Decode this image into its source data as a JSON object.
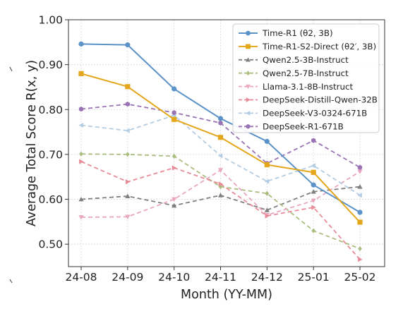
{
  "chart_data": {
    "type": "line",
    "xlabel": "Month (YY-MM)",
    "ylabel": "Average Total Score R(x, y)",
    "ylim": [
      0.45,
      1.0
    ],
    "yticks": [
      "0.50",
      "0.60",
      "0.70",
      "0.80",
      "0.90",
      "1.00"
    ],
    "categories": [
      "24-08",
      "24-09",
      "24-10",
      "24-11",
      "24-12",
      "25-01",
      "25-02"
    ],
    "grid": true,
    "legend_position": "top-right",
    "series": [
      {
        "name": "Time-R1 (θ2, 3B)",
        "color": "#5b93c8",
        "style": "solid",
        "marker": "circle",
        "values": [
          0.946,
          0.944,
          0.846,
          0.78,
          0.729,
          0.632,
          0.571
        ]
      },
      {
        "name": "Time-R1-S2-Direct (θ2′, 3B)",
        "color": "#e4a61a",
        "style": "solid",
        "marker": "square",
        "values": [
          0.88,
          0.851,
          0.778,
          0.738,
          0.677,
          0.66,
          0.549
        ]
      },
      {
        "name": "Qwen2.5-3B-Instruct",
        "color": "#7f7f7f",
        "style": "dashed",
        "marker": "triangle-up",
        "values": [
          0.6,
          0.607,
          0.586,
          0.609,
          0.576,
          0.617,
          0.628
        ]
      },
      {
        "name": "Qwen2.5-7B-Instruct",
        "color": "#a9be7f",
        "style": "dashed",
        "marker": "diamond",
        "values": [
          0.701,
          0.7,
          0.696,
          0.628,
          0.613,
          0.53,
          0.49
        ]
      },
      {
        "name": "Llama-3.1-8B-Instruct",
        "color": "#e9a7c0",
        "style": "dashed",
        "marker": "triangle-down",
        "values": [
          0.56,
          0.561,
          0.6,
          0.665,
          0.565,
          0.597,
          0.662
        ]
      },
      {
        "name": "DeepSeek-Distill-Qwen-32B",
        "color": "#e88b98",
        "style": "dashed",
        "marker": "triangle-right",
        "values": [
          0.684,
          0.639,
          0.67,
          0.634,
          0.563,
          0.582,
          0.466
        ]
      },
      {
        "name": "DeepSeek-V3-0324-671B",
        "color": "#b5cde3",
        "style": "dashed",
        "marker": "triangle-left",
        "values": [
          0.765,
          0.753,
          0.787,
          0.697,
          0.64,
          0.675,
          0.609
        ]
      },
      {
        "name": "DeepSeek-R1-671B",
        "color": "#9a73b5",
        "style": "dashed",
        "marker": "hexagon",
        "values": [
          0.801,
          0.812,
          0.793,
          0.77,
          0.68,
          0.731,
          0.671
        ]
      }
    ]
  }
}
